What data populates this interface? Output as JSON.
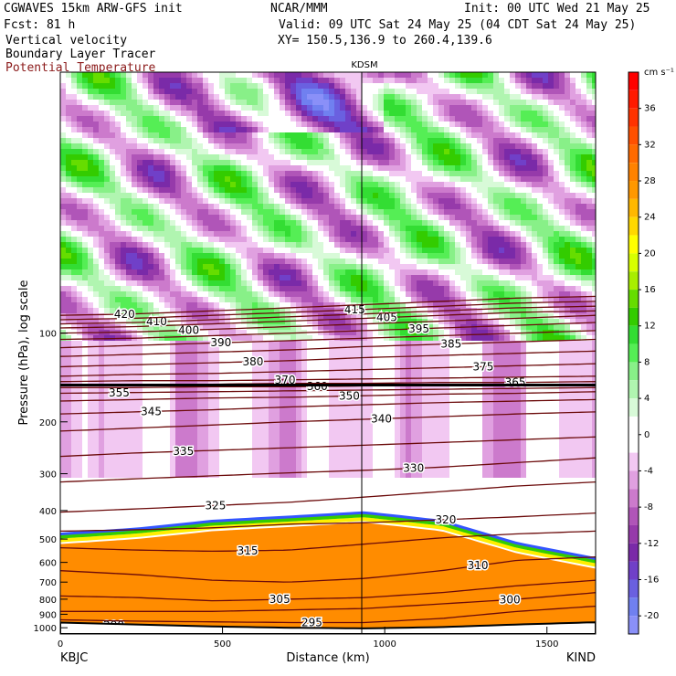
{
  "header": {
    "model": "CGWAVES 15km ARW-GFS init",
    "org": "NCAR/MMM",
    "init": "Init: 00 UTC Wed 21 May 25",
    "fcst": "Fcst:   81 h",
    "valid": "Valid: 09 UTC Sat 24 May 25 (04 CDT Sat 24 May 25)",
    "field1": "Vertical velocity",
    "field2": "Boundary Layer Tracer",
    "field3": "Potential Temperature",
    "xy": "XY= 150.5,136.9 to 260.4,139.6"
  },
  "colors": {
    "theta": "#6b0a0a",
    "field3_text": "#8b1a1a",
    "terrain": "#000000"
  },
  "chart_data": {
    "type": "heatmap",
    "xlabel": "Distance (km)",
    "ylabel": "Pressure (hPa), log scale",
    "x_ticks": [
      "0",
      "500",
      "1000",
      "1500"
    ],
    "x_tick_values": [
      0,
      500,
      1000,
      1500
    ],
    "xlim": [
      0,
      1650
    ],
    "y_ticks": [
      "100",
      "200",
      "300",
      "400",
      "500",
      "600",
      "700",
      "800",
      "900",
      "1000"
    ],
    "y_tick_values": [
      100,
      200,
      300,
      400,
      500,
      600,
      700,
      800,
      900,
      1000
    ],
    "ylim": [
      1050,
      13
    ],
    "y_scale": "log",
    "left_station": "KBJC",
    "right_station": "KIND",
    "mid_station": "KDSM",
    "mid_station_km": 940,
    "colorbar": {
      "unit": "cm s⁻¹",
      "tick_labels": [
        "36",
        "32",
        "28",
        "24",
        "20",
        "16",
        "12",
        "8",
        "4",
        "0",
        "-4",
        "-8",
        "-12",
        "-16",
        "-20"
      ],
      "tick_values": [
        36,
        32,
        28,
        24,
        20,
        16,
        12,
        8,
        4,
        0,
        -4,
        -8,
        -12,
        -16,
        -20
      ],
      "bins": [
        {
          "lo": 38,
          "hi": 40,
          "color": "#ff0000"
        },
        {
          "lo": 36,
          "hi": 38,
          "color": "#ff1a00"
        },
        {
          "lo": 34,
          "hi": 36,
          "color": "#ff3300"
        },
        {
          "lo": 32,
          "hi": 34,
          "color": "#ff5000"
        },
        {
          "lo": 30,
          "hi": 32,
          "color": "#ff6a00"
        },
        {
          "lo": 28,
          "hi": 30,
          "color": "#ff8200"
        },
        {
          "lo": 26,
          "hi": 28,
          "color": "#ff9800"
        },
        {
          "lo": 24,
          "hi": 26,
          "color": "#ffb800"
        },
        {
          "lo": 22,
          "hi": 24,
          "color": "#ffd800"
        },
        {
          "lo": 20,
          "hi": 22,
          "color": "#ffff00"
        },
        {
          "lo": 18,
          "hi": 20,
          "color": "#d8ff00"
        },
        {
          "lo": 16,
          "hi": 18,
          "color": "#a8ee00"
        },
        {
          "lo": 14,
          "hi": 16,
          "color": "#66dd00"
        },
        {
          "lo": 12,
          "hi": 14,
          "color": "#33cc00"
        },
        {
          "lo": 10,
          "hi": 12,
          "color": "#33dd33"
        },
        {
          "lo": 8,
          "hi": 10,
          "color": "#55ee55"
        },
        {
          "lo": 6,
          "hi": 8,
          "color": "#88f088"
        },
        {
          "lo": 4,
          "hi": 6,
          "color": "#b0f5b0"
        },
        {
          "lo": 2,
          "hi": 4,
          "color": "#d8fad8"
        },
        {
          "lo": 0,
          "hi": 2,
          "color": "#ffffff"
        },
        {
          "lo": -2,
          "hi": 0,
          "color": "#ffffff"
        },
        {
          "lo": -4,
          "hi": -2,
          "color": "#f2c8f2"
        },
        {
          "lo": -6,
          "hi": -4,
          "color": "#e0a0e0"
        },
        {
          "lo": -8,
          "hi": -6,
          "color": "#cc7acc"
        },
        {
          "lo": -10,
          "hi": -8,
          "color": "#b055b8"
        },
        {
          "lo": -12,
          "hi": -10,
          "color": "#963aaa"
        },
        {
          "lo": -14,
          "hi": -12,
          "color": "#7a2aa8"
        },
        {
          "lo": -16,
          "hi": -14,
          "color": "#7040c8"
        },
        {
          "lo": -18,
          "hi": -16,
          "color": "#6a60e0"
        },
        {
          "lo": -20,
          "hi": -18,
          "color": "#7080f0"
        },
        {
          "lo": -22,
          "hi": -20,
          "color": "#8a90f8"
        }
      ]
    },
    "theta_contours": [
      {
        "label": "290",
        "p": [
          970,
          985,
          1000,
          1010,
          1020,
          1010,
          990,
          975
        ]
      },
      {
        "label": "295",
        "p": [
          940,
          950,
          955,
          960,
          960,
          930,
          880,
          845
        ]
      },
      {
        "label": "300",
        "p": [
          880,
          880,
          880,
          870,
          860,
          830,
          800,
          760
        ]
      },
      {
        "label": "305",
        "p": [
          780,
          790,
          810,
          800,
          790,
          760,
          720,
          690
        ]
      },
      {
        "label": "310",
        "p": [
          640,
          660,
          690,
          700,
          680,
          640,
          590,
          575
        ]
      },
      {
        "label": "315",
        "p": [
          535,
          545,
          550,
          545,
          520,
          495,
          480,
          470
        ]
      },
      {
        "label": "320",
        "p": [
          470,
          465,
          458,
          445,
          440,
          430,
          420,
          408
        ]
      },
      {
        "label": "325",
        "p": [
          405,
          395,
          385,
          375,
          360,
          345,
          330,
          320
        ]
      },
      {
        "label": "330",
        "p": [
          320,
          312,
          305,
          298,
          292,
          285,
          275,
          265
        ]
      },
      {
        "label": "335",
        "p": [
          262,
          255,
          250,
          245,
          240,
          235,
          230,
          225
        ]
      },
      {
        "label": "340",
        "p": [
          215,
          210,
          205,
          200,
          196,
          192,
          188,
          185
        ]
      },
      {
        "label": "345",
        "p": [
          188,
          185,
          182,
          178,
          175,
          172,
          170,
          168
        ]
      },
      {
        "label": "350",
        "p": [
          170,
          168,
          166,
          165,
          163,
          161,
          160,
          158
        ]
      },
      {
        "label": "355",
        "p": [
          160,
          159,
          158,
          157,
          156,
          155,
          154,
          153
        ]
      },
      {
        "label": "360",
        "p": [
          153,
          153,
          152,
          152,
          151,
          151,
          150,
          150
        ]
      },
      {
        "label": "365",
        "p": [
          150,
          149,
          149,
          148,
          148,
          147,
          147,
          146
        ]
      },
      {
        "label": "370",
        "p": [
          146,
          145,
          145,
          144,
          143,
          142,
          141,
          140
        ]
      },
      {
        "label": "375",
        "p": [
          140,
          138,
          137,
          135,
          133,
          131,
          129,
          127
        ]
      },
      {
        "label": "380",
        "p": [
          130,
          128,
          126,
          124,
          121,
          119,
          117,
          115
        ]
      },
      {
        "label": "385",
        "p": [
          120,
          118,
          116,
          114,
          111,
          109,
          107,
          105
        ]
      },
      {
        "label": "390",
        "p": [
          112,
          110,
          108,
          106,
          104,
          102,
          100,
          98
        ]
      },
      {
        "label": "395",
        "p": [
          105,
          104,
          102,
          100,
          98,
          96,
          94,
          92
        ]
      },
      {
        "label": "400",
        "p": [
          100,
          99,
          97,
          95,
          93,
          91,
          89,
          87
        ]
      },
      {
        "label": "405",
        "p": [
          96,
          95,
          93,
          91,
          89,
          87,
          85,
          84
        ]
      },
      {
        "label": "410",
        "p": [
          93,
          92,
          90,
          88,
          86,
          84,
          82,
          81
        ]
      },
      {
        "label": "415",
        "p": [
          90,
          89,
          87,
          85,
          83,
          81,
          79,
          78
        ]
      },
      {
        "label": "420",
        "p": [
          87,
          86,
          84,
          82,
          80,
          78,
          76,
          75
        ]
      }
    ],
    "theta_x_km": [
      0,
      235,
      470,
      705,
      940,
      1175,
      1410,
      1650
    ],
    "surface_p": [
      960,
      975,
      990,
      1000,
      1005,
      995,
      975,
      958
    ],
    "orange_top_p": [
      520,
      500,
      470,
      455,
      440,
      470,
      560,
      630
    ],
    "tropopause_p": 150
  }
}
